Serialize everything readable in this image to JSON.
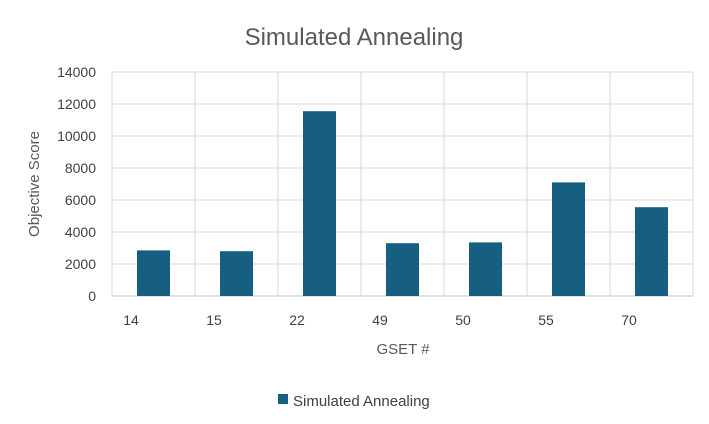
{
  "chart_data": {
    "type": "bar",
    "title": "Simulated Annealing",
    "xlabel": "GSET #",
    "ylabel": "Objective Score",
    "categories": [
      "14",
      "15",
      "22",
      "49",
      "50",
      "55",
      "70"
    ],
    "series": [
      {
        "name": "Simulated Annealing",
        "values": [
          2850,
          2800,
          11550,
          3300,
          3350,
          7100,
          5550
        ]
      }
    ],
    "ylim": [
      0,
      14000
    ],
    "yticks": [
      0,
      2000,
      4000,
      6000,
      8000,
      10000,
      12000,
      14000
    ],
    "grid": true,
    "legend_position": "bottom",
    "colors": {
      "bar": "#175f80",
      "grid": "#d9d9d9",
      "axis": "#bfbfbf"
    }
  }
}
